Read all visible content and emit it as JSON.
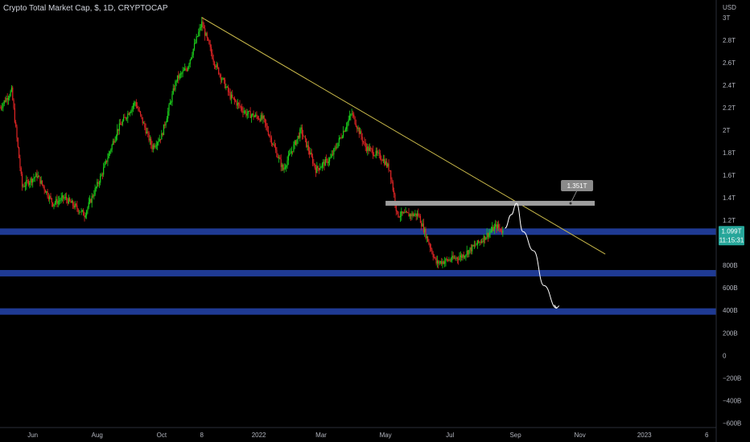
{
  "header": {
    "title": "Crypto Total Market Cap, $, 1D, CRYPTOCAP"
  },
  "chart_data": {
    "type": "candlestick",
    "currency": "USD",
    "y_tick_labels": [
      "3T",
      "2.8T",
      "2.6T",
      "2.4T",
      "2.2T",
      "2T",
      "1.8T",
      "1.6T",
      "1.4T",
      "1.2T",
      "800B",
      "600B",
      "400B",
      "200B",
      "0",
      "−200B",
      "−400B",
      "−600B"
    ],
    "y_tick_values": [
      3000,
      2800,
      2600,
      2400,
      2200,
      2000,
      1800,
      1600,
      1400,
      1200,
      800,
      600,
      400,
      200,
      0,
      -200,
      -400,
      -600
    ],
    "x_tick_labels": [
      "Jun",
      "Aug",
      "Oct",
      "8",
      "2022",
      "Mar",
      "May",
      "Jul",
      "Sep",
      "Nov",
      "2023",
      "6"
    ],
    "x_tick_dates": [
      "2021-06-01",
      "2021-08-01",
      "2021-10-01",
      "2021-11-08",
      "2022-01-01",
      "2022-03-01",
      "2022-05-01",
      "2022-07-01",
      "2022-09-01",
      "2022-11-01",
      "2023-01-01",
      "2023-03-01"
    ],
    "x_range": [
      "2021-05-01",
      "2023-03-10"
    ],
    "y_range": [
      -640,
      3120
    ],
    "price_path": [
      {
        "date": "2021-05-01",
        "value": 2200
      },
      {
        "date": "2021-05-12",
        "value": 2350
      },
      {
        "date": "2021-05-22",
        "value": 1500
      },
      {
        "date": "2021-06-05",
        "value": 1600
      },
      {
        "date": "2021-06-20",
        "value": 1350
      },
      {
        "date": "2021-07-01",
        "value": 1400
      },
      {
        "date": "2021-07-20",
        "value": 1250
      },
      {
        "date": "2021-08-05",
        "value": 1600
      },
      {
        "date": "2021-08-20",
        "value": 2000
      },
      {
        "date": "2021-09-06",
        "value": 2250
      },
      {
        "date": "2021-09-22",
        "value": 1850
      },
      {
        "date": "2021-10-01",
        "value": 1950
      },
      {
        "date": "2021-10-15",
        "value": 2450
      },
      {
        "date": "2021-10-25",
        "value": 2550
      },
      {
        "date": "2021-11-08",
        "value": 2950
      },
      {
        "date": "2021-11-20",
        "value": 2600
      },
      {
        "date": "2021-12-05",
        "value": 2300
      },
      {
        "date": "2021-12-20",
        "value": 2150
      },
      {
        "date": "2022-01-05",
        "value": 2100
      },
      {
        "date": "2022-01-24",
        "value": 1650
      },
      {
        "date": "2022-02-10",
        "value": 2000
      },
      {
        "date": "2022-02-24",
        "value": 1650
      },
      {
        "date": "2022-03-10",
        "value": 1750
      },
      {
        "date": "2022-03-30",
        "value": 2150
      },
      {
        "date": "2022-04-12",
        "value": 1850
      },
      {
        "date": "2022-04-28",
        "value": 1750
      },
      {
        "date": "2022-05-05",
        "value": 1650
      },
      {
        "date": "2022-05-12",
        "value": 1250
      },
      {
        "date": "2022-06-01",
        "value": 1250
      },
      {
        "date": "2022-06-18",
        "value": 820
      },
      {
        "date": "2022-07-01",
        "value": 850
      },
      {
        "date": "2022-07-12",
        "value": 880
      },
      {
        "date": "2022-07-28",
        "value": 1000
      },
      {
        "date": "2022-08-14",
        "value": 1150
      },
      {
        "date": "2022-08-20",
        "value": 1099
      }
    ],
    "trendline": {
      "from": {
        "date": "2021-11-08",
        "value": 3000
      },
      "to": {
        "date": "2022-11-25",
        "value": 900
      }
    },
    "resistance_zone": {
      "label": "1.351T",
      "value": 1351,
      "from": "2022-05-01",
      "to": "2022-11-15"
    },
    "support_zones": [
      1099,
      730,
      390
    ],
    "projection_path": [
      {
        "date": "2022-08-22",
        "value": 1130
      },
      {
        "date": "2022-08-28",
        "value": 1250
      },
      {
        "date": "2022-09-02",
        "value": 1351
      },
      {
        "date": "2022-09-08",
        "value": 1100
      },
      {
        "date": "2022-09-18",
        "value": 930
      },
      {
        "date": "2022-09-28",
        "value": 620
      },
      {
        "date": "2022-10-10",
        "value": 420
      }
    ],
    "last_price": {
      "label": "1.099T",
      "value": 1099,
      "countdown": "11:15:31"
    },
    "colors": {
      "up": "#26a69a",
      "bull": "#1bd11b",
      "bear": "#e02525",
      "zone": "#1f3a93",
      "resistance": "#9e9e9e",
      "trend": "#c9b94a",
      "background": "#000000",
      "last_price": "#26a69a"
    }
  }
}
